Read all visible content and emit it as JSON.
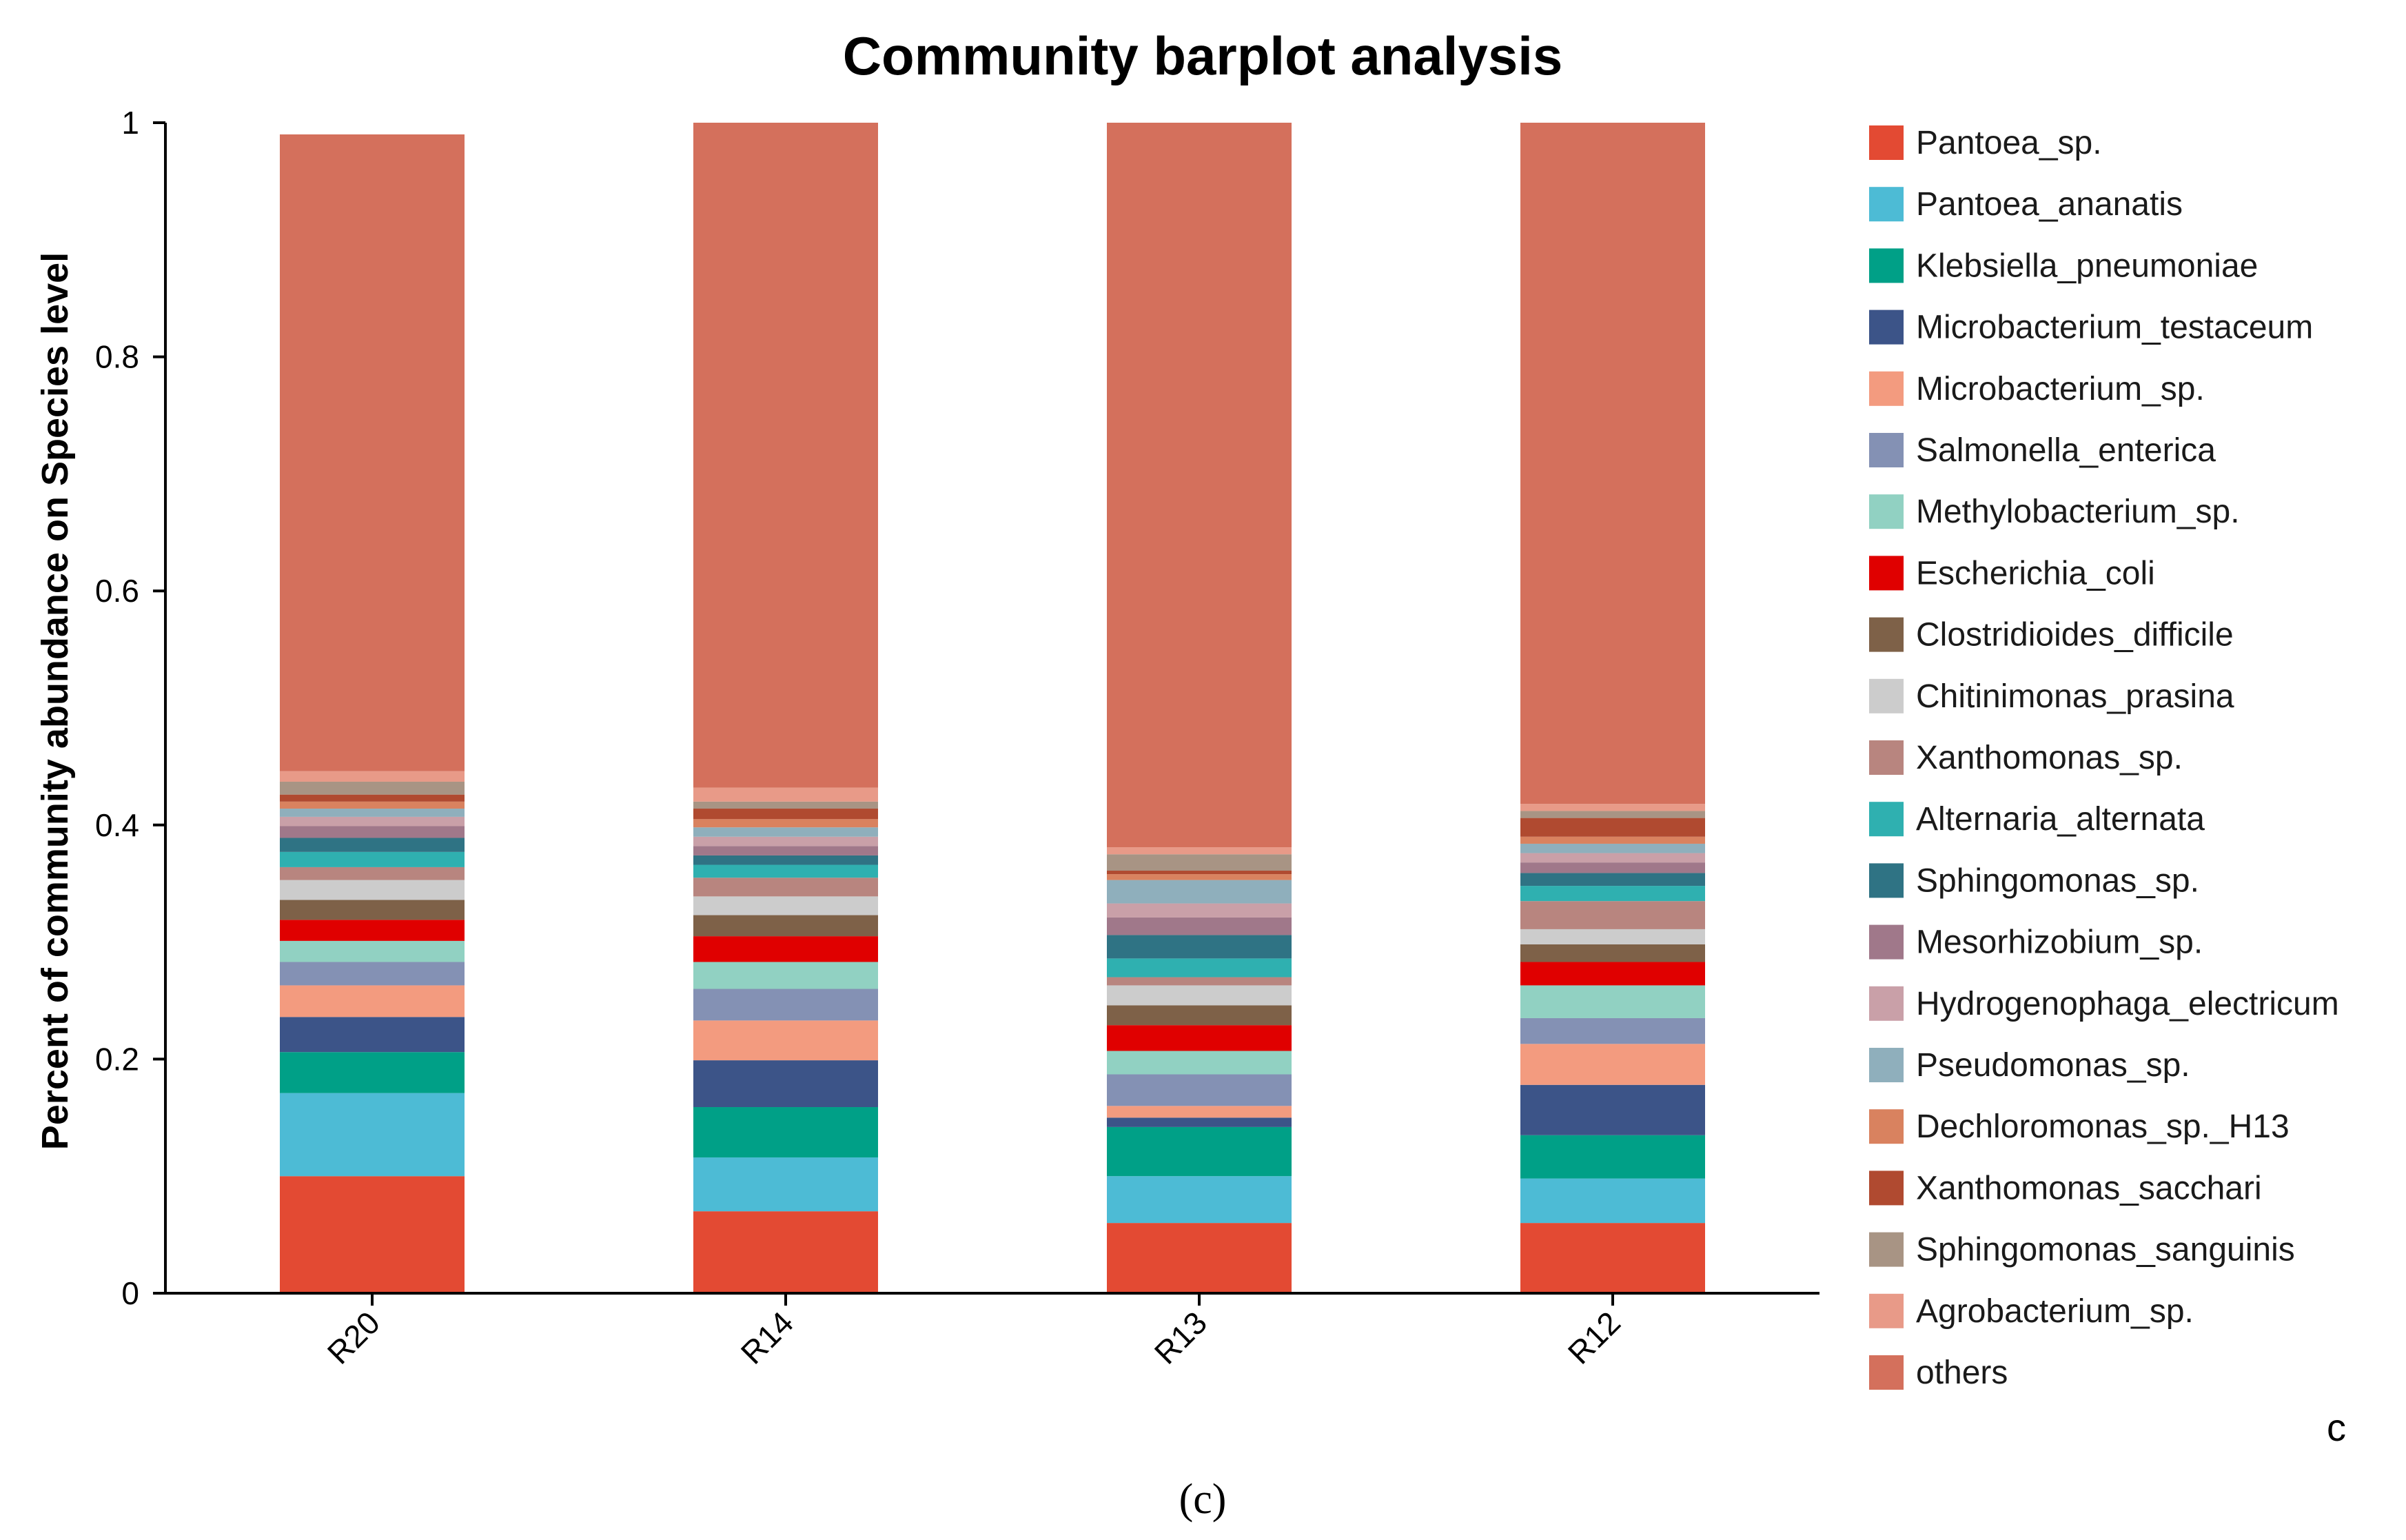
{
  "chart_data": {
    "type": "bar",
    "stacked": true,
    "title": "Community barplot analysis",
    "xlabel": "",
    "ylabel": "Percent of community abundance on Species level",
    "ylim": [
      0,
      1
    ],
    "yticks": [
      "0",
      "0.2",
      "0.4",
      "0.6",
      "0.8",
      "1"
    ],
    "categories": [
      "R20",
      "R14",
      "R13",
      "R12"
    ],
    "series": [
      {
        "name": "Pantoea_sp.",
        "color": "#E34A33",
        "values": [
          0.1,
          0.07,
          0.06,
          0.06
        ]
      },
      {
        "name": "Pantoea_ananatis",
        "color": "#4DBBD5",
        "values": [
          0.071,
          0.046,
          0.04,
          0.038
        ]
      },
      {
        "name": "Klebsiella_pneumoniae",
        "color": "#00A087",
        "values": [
          0.035,
          0.043,
          0.042,
          0.037
        ]
      },
      {
        "name": "Microbacterium_testaceum",
        "color": "#3C5488",
        "values": [
          0.03,
          0.04,
          0.008,
          0.043
        ]
      },
      {
        "name": "Microbacterium_sp.",
        "color": "#F39B7F",
        "values": [
          0.027,
          0.034,
          0.01,
          0.035
        ]
      },
      {
        "name": "Salmonella_enterica",
        "color": "#8491B4",
        "values": [
          0.02,
          0.027,
          0.027,
          0.022
        ]
      },
      {
        "name": "Methylobacterium_sp.",
        "color": "#91D1C2",
        "values": [
          0.018,
          0.023,
          0.02,
          0.028
        ]
      },
      {
        "name": "Escherichia_coli",
        "color": "#E00000",
        "values": [
          0.018,
          0.022,
          0.022,
          0.02
        ]
      },
      {
        "name": "Clostridioides_difficile",
        "color": "#7E6148",
        "values": [
          0.017,
          0.018,
          0.017,
          0.015
        ]
      },
      {
        "name": "Chitinimonas_prasina",
        "color": "#CCCCCC",
        "values": [
          0.017,
          0.016,
          0.017,
          0.013
        ]
      },
      {
        "name": "Xanthomonas_sp.",
        "color": "#B8857F",
        "values": [
          0.011,
          0.016,
          0.007,
          0.024
        ]
      },
      {
        "name": "Alternaria_alternata",
        "color": "#2FB0B0",
        "values": [
          0.013,
          0.011,
          0.016,
          0.013
        ]
      },
      {
        "name": "Sphingomonas_sp.",
        "color": "#2F7384",
        "values": [
          0.012,
          0.008,
          0.02,
          0.011
        ]
      },
      {
        "name": "Mesorhizobium_sp.",
        "color": "#A0788A",
        "values": [
          0.01,
          0.008,
          0.015,
          0.009
        ]
      },
      {
        "name": "Hydrogenophaga_electricum",
        "color": "#C9A0A8",
        "values": [
          0.008,
          0.008,
          0.012,
          0.008
        ]
      },
      {
        "name": "Pseudomonas_sp.",
        "color": "#8FAFBC",
        "values": [
          0.007,
          0.008,
          0.02,
          0.008
        ]
      },
      {
        "name": "Dechloromonas_sp._H13",
        "color": "#D9825F",
        "values": [
          0.006,
          0.007,
          0.005,
          0.006
        ]
      },
      {
        "name": "Xanthomonas_sacchari",
        "color": "#B04A30",
        "values": [
          0.006,
          0.009,
          0.003,
          0.016
        ]
      },
      {
        "name": "Sphingomonas_sanguinis",
        "color": "#A89484",
        "values": [
          0.011,
          0.006,
          0.014,
          0.006
        ]
      },
      {
        "name": "Agrobacterium_sp.",
        "color": "#E89A88",
        "values": [
          0.009,
          0.012,
          0.006,
          0.006
        ]
      },
      {
        "name": "others",
        "color": "#D4705C",
        "values": [
          0.544,
          0.568,
          0.619,
          0.582
        ]
      }
    ]
  },
  "panel_letter": "c",
  "caption": "(c)"
}
